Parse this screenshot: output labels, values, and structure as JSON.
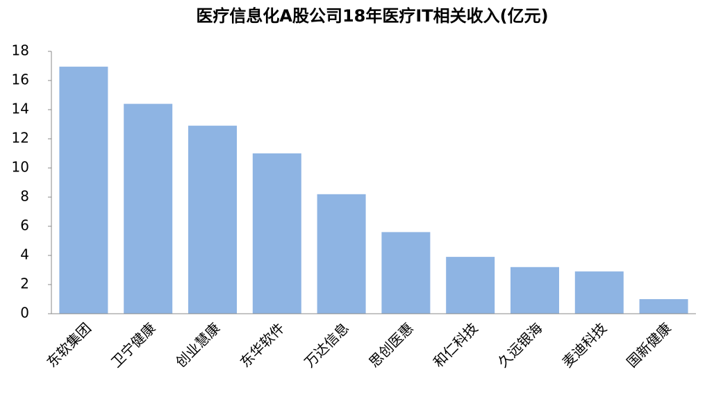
{
  "chart_data": {
    "type": "bar",
    "title": "医疗信息化A股公司18年医疗IT相关收入(亿元)",
    "categories": [
      "东软集团",
      "卫宁健康",
      "创业慧康",
      "东华软件",
      "万达信息",
      "思创医惠",
      "和仁科技",
      "久远银海",
      "麦迪科技",
      "国新健康"
    ],
    "values": [
      16.95,
      14.4,
      12.9,
      11.0,
      8.2,
      5.6,
      3.9,
      3.2,
      2.9,
      1.0
    ],
    "color": "#8eb4e3",
    "ylim": [
      0,
      18
    ],
    "yticks": [
      0,
      2,
      4,
      6,
      8,
      10,
      12,
      14,
      16,
      18
    ],
    "grid": false
  }
}
